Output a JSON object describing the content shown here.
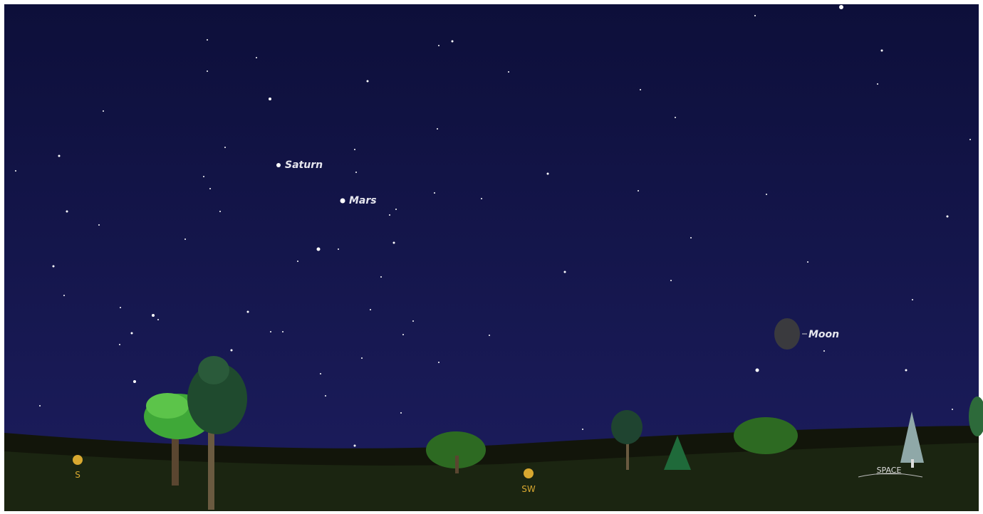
{
  "sky": {
    "objects": [
      {
        "label": "Saturn"
      },
      {
        "label": "Mars"
      },
      {
        "label": "Moon"
      }
    ]
  },
  "compass": [
    {
      "label": "S"
    },
    {
      "label": "SW"
    }
  ],
  "landmark": {
    "label": "SPACE"
  }
}
